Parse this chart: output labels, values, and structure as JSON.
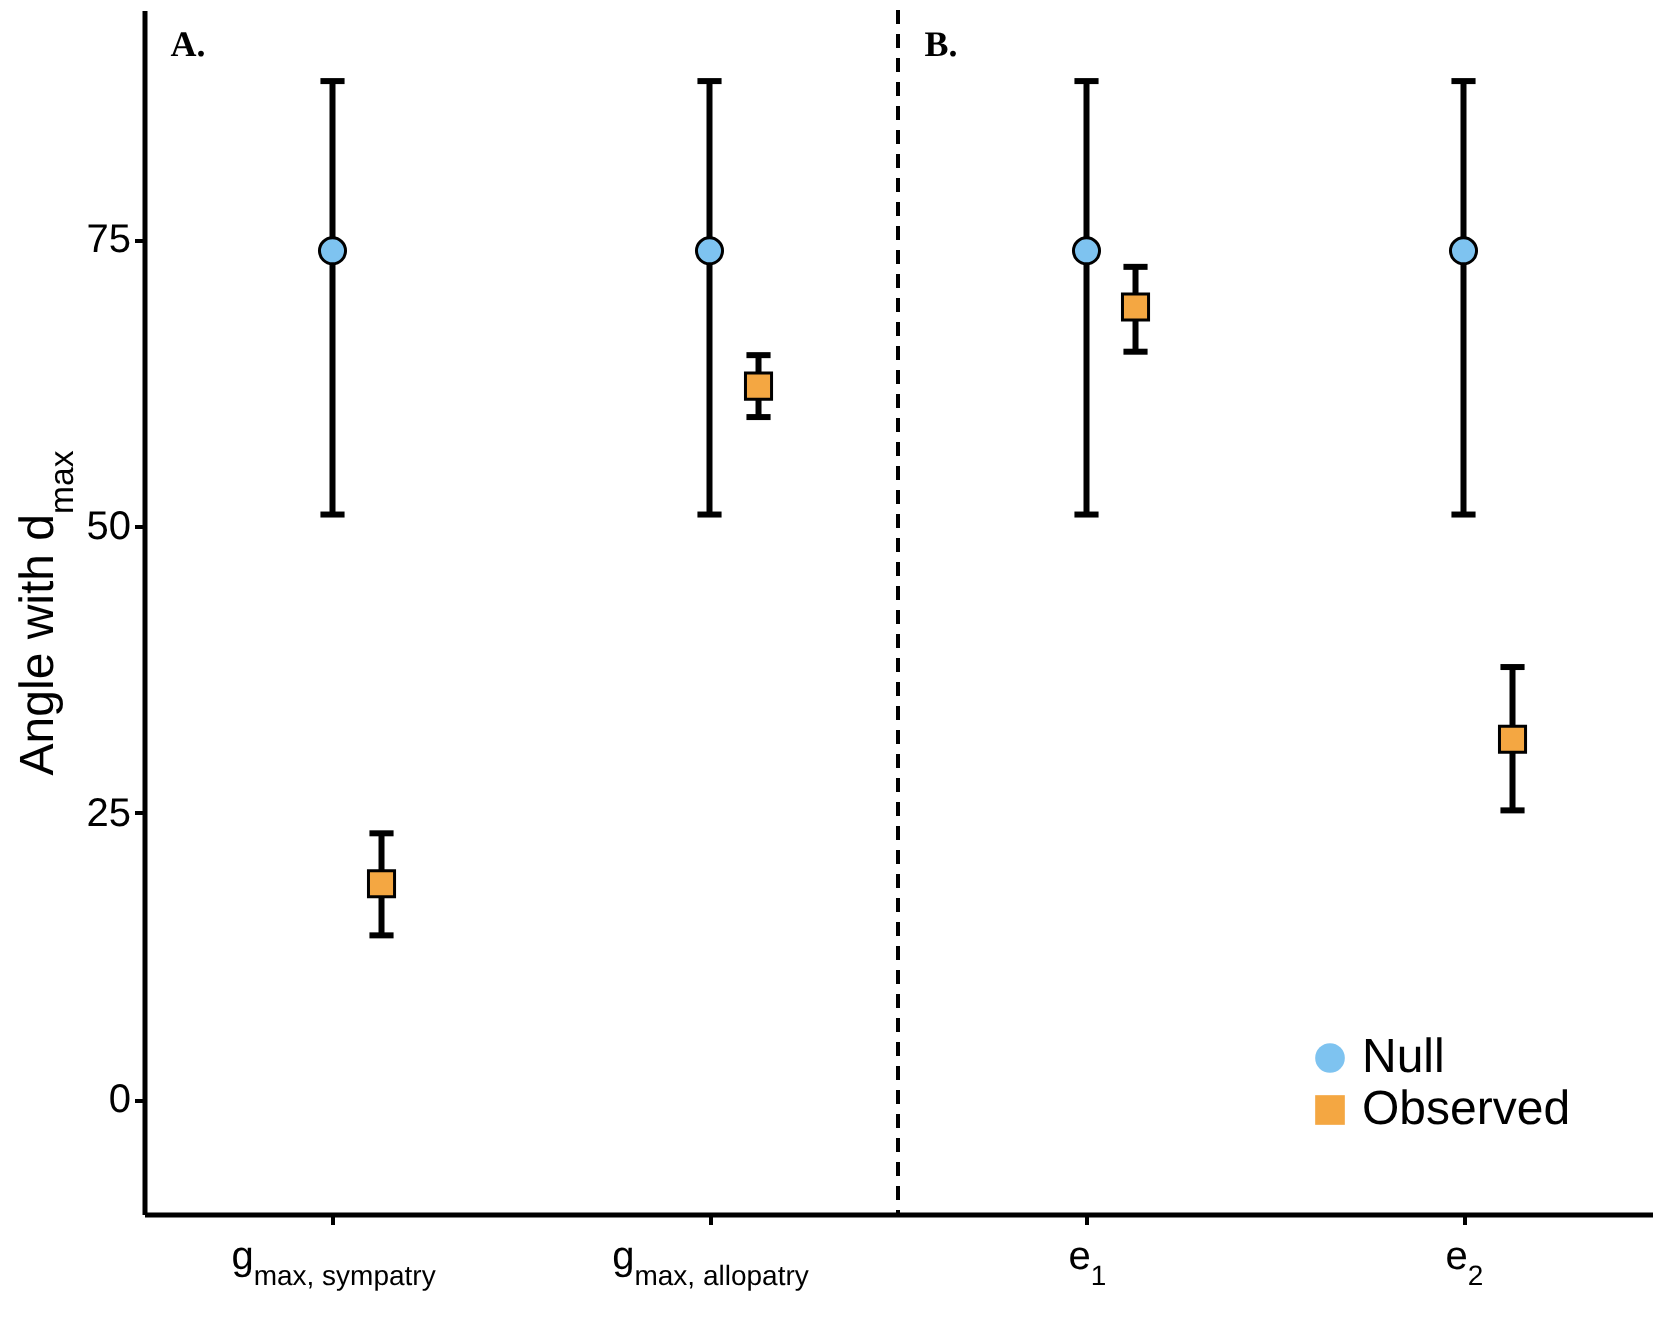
{
  "chart_data": {
    "type": "scatter",
    "ylabel": "Angle with d$_{max}$",
    "categories": [
      "g$_{max, sympatry}$",
      "g$_{max, allopatry}$",
      "e$_{1}$",
      "e$_{2}$"
    ],
    "ylim": [
      -10,
      95
    ],
    "yticks": [
      0,
      25,
      50,
      75
    ],
    "legend": "bottom right",
    "annotations": [
      "A.",
      "B."
    ],
    "series": [
      {
        "name": "Null",
        "color": "#7ec3f0",
        "marker": "circle",
        "values": [
          74,
          74,
          74,
          74
        ],
        "errors": [
          [
            51,
            88.8
          ],
          [
            51,
            88.8
          ],
          [
            51,
            88.8
          ],
          [
            51,
            88.8
          ]
        ]
      },
      {
        "name": "Observed",
        "color": "#f4a742",
        "marker": "square",
        "values": [
          18.8,
          62.2,
          69.1,
          31.4
        ],
        "errors": [
          [
            14.3,
            23.2
          ],
          [
            59.5,
            64.9
          ],
          [
            65.2,
            72.6
          ],
          [
            25.2,
            37.7
          ]
        ]
      }
    ]
  }
}
